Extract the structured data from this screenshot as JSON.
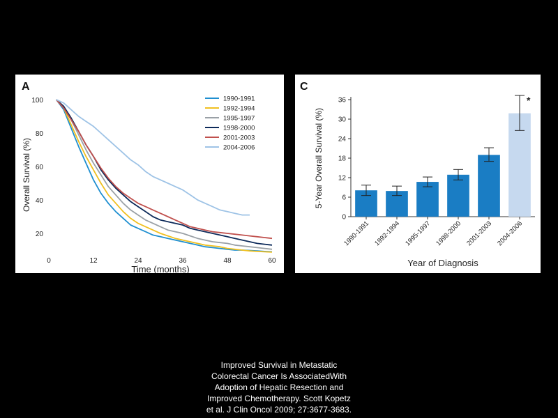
{
  "caption": {
    "lines": [
      "Improved Survival in Metastatic",
      "Colorectal Cancer Is AssociatedWith",
      "Adoption of Hepatic Resection and",
      "Improved Chemotherapy. Scott Kopetz",
      "et al. J Clin Oncol 2009; 27:3677-3683."
    ]
  },
  "colors": {
    "background": "#000000",
    "panel": "#ffffff",
    "bar": "#1a7dc4",
    "bar_highlight": "#c6d9ef"
  },
  "chart_data": [
    {
      "panel_label": "A",
      "type": "line",
      "xlabel": "Time (months)",
      "ylabel": "Overall Survival (%)",
      "xlim": [
        0,
        60
      ],
      "ylim": [
        10,
        100
      ],
      "xticks": [
        0,
        12,
        24,
        36,
        48,
        60
      ],
      "yticks": [
        20,
        40,
        60,
        80,
        100
      ],
      "legend_position": "top-right",
      "series": [
        {
          "name": "1990-1991",
          "color": "#1f8fd0",
          "x": [
            2,
            4,
            6,
            8,
            10,
            12,
            14,
            16,
            18,
            20,
            22,
            24,
            26,
            28,
            30,
            32,
            34,
            36,
            38,
            40,
            42,
            44,
            46,
            48,
            50,
            52,
            54,
            56,
            58,
            60
          ],
          "y": [
            100,
            94,
            83,
            72,
            62,
            52,
            44,
            38,
            33,
            29,
            25,
            23,
            21,
            19,
            18,
            17,
            16,
            15,
            14,
            13,
            12,
            11.5,
            11,
            10.5,
            10,
            10,
            9.8,
            9.5,
            9.2,
            9
          ]
        },
        {
          "name": "1992-1994",
          "color": "#f0c020",
          "x": [
            2,
            4,
            6,
            8,
            10,
            12,
            14,
            16,
            18,
            20,
            22,
            24,
            26,
            28,
            30,
            32,
            34,
            36,
            38,
            40,
            42,
            44,
            46,
            48,
            50,
            52,
            54,
            56,
            58,
            60
          ],
          "y": [
            100,
            95,
            85,
            75,
            66,
            58,
            50,
            43,
            38,
            33,
            29,
            26,
            24,
            22,
            20,
            18.5,
            17,
            16,
            15,
            14,
            13,
            12.5,
            12,
            11,
            10.5,
            10,
            9.5,
            9.2,
            9,
            8.8
          ]
        },
        {
          "name": "1995-1997",
          "color": "#9aa0a6",
          "x": [
            2,
            4,
            6,
            8,
            10,
            12,
            14,
            16,
            18,
            20,
            22,
            24,
            26,
            28,
            30,
            32,
            34,
            36,
            38,
            40,
            42,
            44,
            46,
            48,
            50,
            52,
            54,
            56,
            58,
            60
          ],
          "y": [
            100,
            96,
            88,
            79,
            70,
            62,
            55,
            48,
            43,
            38,
            34,
            31,
            28,
            26,
            24,
            22,
            21,
            20,
            18.5,
            17,
            16,
            15,
            14.5,
            14,
            13,
            12.5,
            12,
            11.5,
            11,
            10.5
          ]
        },
        {
          "name": "1998-2000",
          "color": "#0d2a5a",
          "x": [
            2,
            4,
            6,
            8,
            10,
            12,
            14,
            16,
            18,
            20,
            22,
            24,
            26,
            28,
            30,
            32,
            34,
            36,
            38,
            40,
            42,
            44,
            46,
            48,
            50,
            52,
            54,
            56,
            58,
            60
          ],
          "y": [
            100,
            96,
            89,
            81,
            73,
            66,
            58,
            52,
            47,
            43,
            39,
            36,
            33,
            30,
            28,
            27,
            26,
            25,
            23,
            22,
            21,
            20,
            19,
            18,
            17,
            16,
            15,
            14,
            13.5,
            13
          ]
        },
        {
          "name": "2001-2003",
          "color": "#c0504d",
          "x": [
            2,
            4,
            6,
            8,
            10,
            12,
            14,
            16,
            18,
            20,
            22,
            24,
            26,
            28,
            30,
            32,
            34,
            36,
            38,
            40,
            42,
            44,
            46,
            48,
            50,
            52,
            54,
            56,
            58,
            60
          ],
          "y": [
            100,
            95,
            88,
            81,
            73,
            66,
            59,
            53,
            48,
            44,
            41,
            38,
            36,
            34,
            32,
            30,
            28,
            26,
            24,
            23,
            22,
            21,
            20.5,
            20,
            19.5,
            19,
            18.5,
            18,
            17.5,
            17
          ]
        },
        {
          "name": "2004-2006",
          "color": "#9ec3e6",
          "x": [
            2,
            4,
            6,
            8,
            10,
            12,
            14,
            16,
            18,
            20,
            22,
            24,
            26,
            28,
            30,
            32,
            34,
            36,
            38,
            40,
            42,
            44,
            46,
            48,
            50,
            52,
            54
          ],
          "y": [
            100,
            98,
            94,
            90,
            87,
            84,
            80,
            76,
            72,
            68,
            64,
            61,
            57,
            54,
            52,
            50,
            48,
            46,
            43,
            40,
            38,
            36,
            34,
            33,
            32,
            31,
            31
          ]
        }
      ]
    },
    {
      "panel_label": "C",
      "type": "bar",
      "xlabel": "Year of Diagnosis",
      "ylabel": "5-Year Overall Survival (%)",
      "ylim": [
        0,
        36
      ],
      "yticks": [
        0,
        6,
        12,
        18,
        24,
        30,
        36
      ],
      "categories": [
        "1990-1991",
        "1992-1994",
        "1995-1997",
        "1998-2000",
        "2001-2003",
        "2004-2006"
      ],
      "values": [
        8.1,
        7.9,
        10.7,
        12.9,
        19.0,
        31.8
      ],
      "error_low": [
        6.5,
        6.5,
        9.2,
        11.3,
        17.0,
        26.5
      ],
      "error_high": [
        9.7,
        9.4,
        12.2,
        14.5,
        21.2,
        37.3
      ],
      "annotations": [
        {
          "category": "2004-2006",
          "text": "*"
        }
      ]
    }
  ]
}
